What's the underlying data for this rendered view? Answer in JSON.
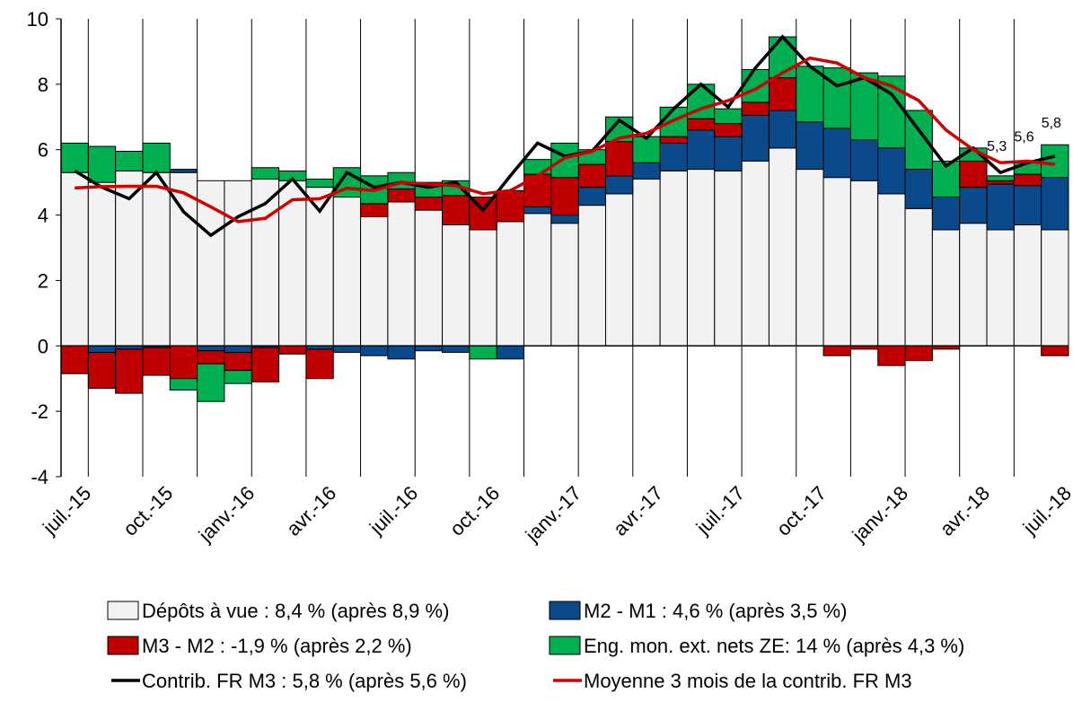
{
  "chart_data": {
    "type": "bar",
    "categories": [
      "juil.-15",
      null,
      null,
      "oct.-15",
      null,
      null,
      "janv.-16",
      null,
      null,
      "avr.-16",
      null,
      null,
      "juil.-16",
      null,
      null,
      "oct.-16",
      null,
      null,
      "janv.-17",
      null,
      null,
      "avr.-17",
      null,
      null,
      "juil.-17",
      null,
      null,
      "oct.-17",
      null,
      null,
      "janv.-18",
      null,
      null,
      "avr.-18",
      null,
      null,
      "juil.-18"
    ],
    "ylim": [
      -4,
      10
    ],
    "yticks": [
      -4,
      -2,
      0,
      2,
      4,
      6,
      8,
      10
    ],
    "series": [
      {
        "name": "Dépôts à vue : 8,4 % (après 8,9  %)",
        "type": "bar",
        "color": "#f2f2f2",
        "values": [
          5.3,
          5.0,
          5.35,
          5.3,
          5.3,
          5.05,
          5.05,
          5.1,
          5.05,
          4.85,
          4.55,
          3.95,
          4.4,
          4.15,
          3.7,
          3.55,
          3.8,
          4.05,
          3.75,
          4.3,
          4.65,
          5.1,
          5.35,
          5.4,
          5.35,
          5.65,
          6.05,
          5.4,
          5.15,
          5.05,
          4.65,
          4.2,
          3.55,
          3.75,
          3.55,
          3.7,
          3.55
        ]
      },
      {
        "name": "M2 - M1 : 4,6 % (après 3,5 %)",
        "type": "bar",
        "color": "#0b4a8a",
        "values": [
          0,
          -0.2,
          -0.1,
          -0.05,
          0.1,
          -0.15,
          -0.2,
          -0.05,
          0,
          -0.1,
          -0.2,
          -0.3,
          -0.4,
          -0.15,
          -0.2,
          0,
          -0.4,
          0.2,
          0.25,
          0.55,
          0.55,
          0.5,
          0.85,
          1.2,
          1.05,
          1.4,
          1.15,
          1.45,
          1.5,
          1.25,
          1.4,
          1.2,
          1.0,
          1.1,
          1.4,
          1.2,
          1.6
        ]
      },
      {
        "name": "M3 - M2 : -1,9 % (après 2,2 %)",
        "type": "bar",
        "color": "#c00000",
        "values": [
          -0.85,
          -1.1,
          -1.35,
          -0.85,
          -1.0,
          -0.4,
          -0.55,
          -1.05,
          -0.25,
          -0.9,
          0,
          0.4,
          0.4,
          0.4,
          0.9,
          1.0,
          0.95,
          1.0,
          1.15,
          0.7,
          1.05,
          0,
          0.2,
          0.35,
          0.4,
          0.4,
          1.0,
          0,
          -0.3,
          -0.1,
          -0.6,
          -0.45,
          -0.1,
          0.8,
          0.1,
          0.35,
          -0.3
        ]
      },
      {
        "name": "Eng. mon. ext. nets ZE: 14 % (après 4,3 %)",
        "type": "bar",
        "color": "#00b050",
        "values": [
          0.9,
          1.1,
          0.6,
          0.9,
          -0.35,
          -1.15,
          -0.4,
          0.35,
          0.3,
          0.25,
          0.9,
          0.85,
          0.5,
          0.45,
          0.45,
          -0.4,
          0,
          0.45,
          1.05,
          0.45,
          0.75,
          0.8,
          0.9,
          1.05,
          0.45,
          1.0,
          1.25,
          1.7,
          1.85,
          2.05,
          2.2,
          1.8,
          1.1,
          0.4,
          0.15,
          0.35,
          1.0
        ]
      },
      {
        "name": "Contrib. FR M3 : 5,8 % (après 5,6 %)",
        "type": "line",
        "color": "#000000",
        "values": [
          5.35,
          4.85,
          4.5,
          5.3,
          4.1,
          3.38,
          3.95,
          4.35,
          5.1,
          4.12,
          5.3,
          4.85,
          5.0,
          4.85,
          5.0,
          4.15,
          5.2,
          6.2,
          5.8,
          5.95,
          6.9,
          6.35,
          7.25,
          8.0,
          7.3,
          8.5,
          9.45,
          8.55,
          7.95,
          8.2,
          7.7,
          6.6,
          5.5,
          6.05,
          5.3,
          5.6,
          5.8
        ],
        "value_labels": [
          null,
          null,
          null,
          null,
          null,
          null,
          null,
          null,
          null,
          null,
          null,
          null,
          null,
          null,
          null,
          null,
          null,
          null,
          null,
          null,
          null,
          null,
          null,
          null,
          null,
          null,
          null,
          null,
          null,
          null,
          null,
          null,
          null,
          null,
          "5,3",
          "5,6",
          "5,8"
        ]
      },
      {
        "name": "Moyenne 3 mois de la contrib. FR M3",
        "type": "line",
        "color": "#d00000",
        "values": [
          4.83,
          4.87,
          4.88,
          4.88,
          4.68,
          4.25,
          3.8,
          3.9,
          4.47,
          4.5,
          4.82,
          4.75,
          5.0,
          4.95,
          4.9,
          4.65,
          4.75,
          5.2,
          5.75,
          5.95,
          6.35,
          6.5,
          6.9,
          7.25,
          7.5,
          7.85,
          8.35,
          8.8,
          8.65,
          8.2,
          7.95,
          7.5,
          6.6,
          6.0,
          5.6,
          5.65,
          5.55
        ]
      }
    ]
  }
}
